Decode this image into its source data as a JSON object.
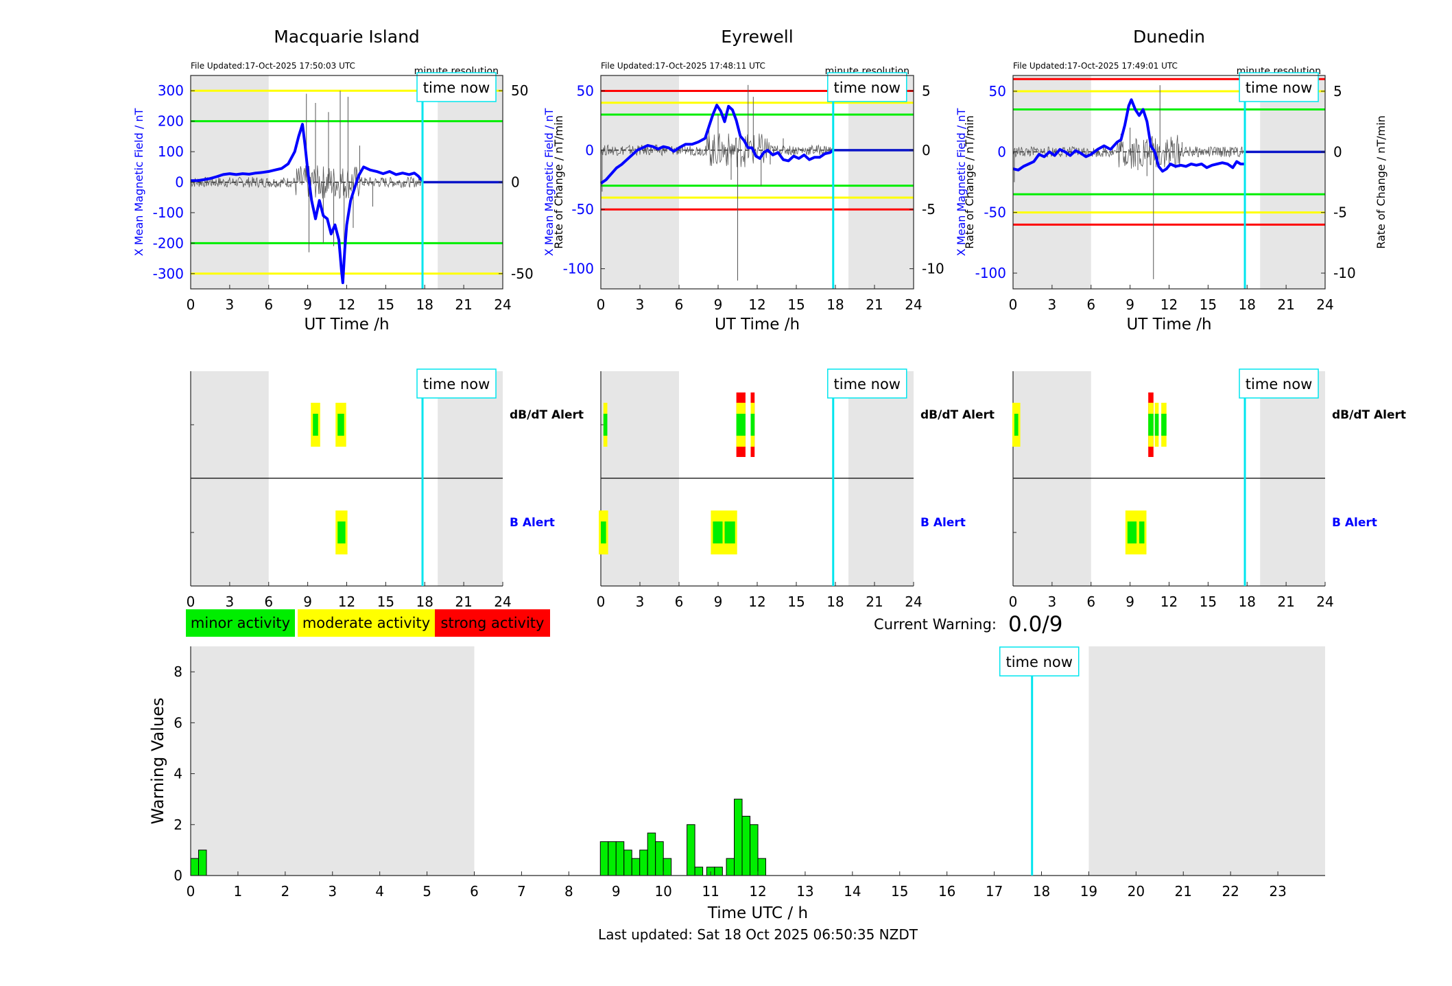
{
  "colors": {
    "shade": "#e6e6e6",
    "blue": "#0000ff",
    "mean_blue": "#0a14c8",
    "cyan": "#00e5ee",
    "green": "#00ee00",
    "yellow": "#ffff00",
    "red": "#ff0000",
    "roc": "#555555"
  },
  "time_now_label": "time now",
  "minute_resolution_label": "minute resolution",
  "stations": [
    {
      "title": "Macquarie Island",
      "file_updated": "File Updated:17-Oct-2025 17:50:03 UTC",
      "ylabel_left": "X Mean Magnetic Field / nT",
      "ylabel_right": "Rate of Change / nT/min",
      "xlabel": "UT Time /h",
      "ylim": [
        -350,
        350
      ],
      "yticks": [
        -300,
        -200,
        -100,
        0,
        100,
        200,
        300
      ],
      "yticks_right": [
        {
          "label": "50",
          "value": 300
        },
        {
          "label": "0",
          "value": 0
        },
        {
          "label": "-50",
          "value": -300
        }
      ],
      "thresholds": [
        {
          "value": 300,
          "color": "yellow"
        },
        {
          "value": 200,
          "color": "green"
        },
        {
          "value": -200,
          "color": "green"
        },
        {
          "value": -300,
          "color": "yellow"
        }
      ],
      "shaded_hours": [
        [
          0,
          6
        ],
        [
          19,
          24
        ]
      ],
      "time_now": 17.83,
      "mean_field": [
        [
          0,
          5
        ],
        [
          0.5,
          5
        ],
        [
          1,
          8
        ],
        [
          1.5,
          12
        ],
        [
          2,
          18
        ],
        [
          2.5,
          25
        ],
        [
          3,
          28
        ],
        [
          3.5,
          25
        ],
        [
          4,
          28
        ],
        [
          4.5,
          26
        ],
        [
          5,
          30
        ],
        [
          5.5,
          32
        ],
        [
          6,
          35
        ],
        [
          6.5,
          40
        ],
        [
          7,
          45
        ],
        [
          7.5,
          60
        ],
        [
          8,
          100
        ],
        [
          8.3,
          150
        ],
        [
          8.6,
          190
        ],
        [
          8.8,
          120
        ],
        [
          9,
          40
        ],
        [
          9.3,
          -60
        ],
        [
          9.6,
          -120
        ],
        [
          9.9,
          -60
        ],
        [
          10.2,
          -110
        ],
        [
          10.5,
          -120
        ],
        [
          10.8,
          -170
        ],
        [
          11.1,
          -140
        ],
        [
          11.4,
          -190
        ],
        [
          11.6,
          -290
        ],
        [
          11.7,
          -330
        ],
        [
          11.85,
          -220
        ],
        [
          12,
          -140
        ],
        [
          12.3,
          -60
        ],
        [
          12.6,
          -20
        ],
        [
          12.9,
          20
        ],
        [
          13.3,
          50
        ],
        [
          13.8,
          40
        ],
        [
          14.3,
          35
        ],
        [
          14.8,
          28
        ],
        [
          15.3,
          35
        ],
        [
          15.8,
          25
        ],
        [
          16.3,
          30
        ],
        [
          16.8,
          25
        ],
        [
          17.2,
          30
        ],
        [
          17.5,
          20
        ],
        [
          17.8,
          5
        ]
      ],
      "roc_spikes": [
        [
          8.9,
          290
        ],
        [
          9.1,
          -230
        ],
        [
          9.6,
          260
        ],
        [
          10.2,
          -200
        ],
        [
          10.6,
          230
        ],
        [
          11.0,
          -210
        ],
        [
          11.5,
          300
        ],
        [
          11.8,
          -230
        ],
        [
          12.1,
          280
        ],
        [
          12.5,
          -150
        ],
        [
          13.0,
          120
        ],
        [
          14.0,
          -80
        ]
      ],
      "alerts": {
        "dbdt": [
          {
            "start": 9.4,
            "end": 9.8,
            "level": "minor"
          },
          {
            "start": 11.3,
            "end": 11.8,
            "level": "minor"
          }
        ],
        "b": [
          {
            "start": 11.3,
            "end": 11.9,
            "level": "minor"
          }
        ]
      }
    },
    {
      "title": "Eyrewell",
      "file_updated": "File Updated:17-Oct-2025 17:48:11 UTC",
      "ylabel_left": "X Mean Magnetic Field / nT",
      "ylabel_right": "Rate of Change / nT/min",
      "xlabel": "UT Time /h",
      "ylim": [
        -117,
        63
      ],
      "yticks": [
        -100,
        -50,
        0,
        50
      ],
      "yticks_right": [
        {
          "label": "5",
          "value": 50
        },
        {
          "label": "0",
          "value": 0
        },
        {
          "label": "-5",
          "value": -50
        },
        {
          "label": "-10",
          "value": -100
        }
      ],
      "thresholds": [
        {
          "value": 50,
          "color": "red"
        },
        {
          "value": 40,
          "color": "yellow"
        },
        {
          "value": 30,
          "color": "green"
        },
        {
          "value": -30,
          "color": "green"
        },
        {
          "value": -40,
          "color": "yellow"
        },
        {
          "value": -50,
          "color": "red"
        }
      ],
      "shaded_hours": [
        [
          0,
          6
        ],
        [
          19,
          24
        ]
      ],
      "time_now": 17.83,
      "mean_field": [
        [
          0,
          -28
        ],
        [
          0.4,
          -25
        ],
        [
          0.8,
          -20
        ],
        [
          1.2,
          -15
        ],
        [
          1.6,
          -12
        ],
        [
          2,
          -8
        ],
        [
          2.4,
          -4
        ],
        [
          2.8,
          0
        ],
        [
          3.2,
          2
        ],
        [
          3.6,
          4
        ],
        [
          4,
          3
        ],
        [
          4.4,
          1
        ],
        [
          4.8,
          3
        ],
        [
          5.2,
          2
        ],
        [
          5.6,
          -1
        ],
        [
          6,
          2
        ],
        [
          6.5,
          5
        ],
        [
          7,
          5
        ],
        [
          7.5,
          7
        ],
        [
          8,
          10
        ],
        [
          8.3,
          20
        ],
        [
          8.6,
          30
        ],
        [
          8.9,
          38
        ],
        [
          9.2,
          33
        ],
        [
          9.5,
          24
        ],
        [
          9.8,
          37
        ],
        [
          10.1,
          34
        ],
        [
          10.4,
          25
        ],
        [
          10.7,
          12
        ],
        [
          11,
          8
        ],
        [
          11.3,
          2
        ],
        [
          11.6,
          2
        ],
        [
          11.9,
          -5
        ],
        [
          12.2,
          -7
        ],
        [
          12.5,
          -2
        ],
        [
          12.8,
          0
        ],
        [
          13.2,
          -4
        ],
        [
          13.6,
          -2
        ],
        [
          14,
          -8
        ],
        [
          14.4,
          -9
        ],
        [
          14.8,
          -5
        ],
        [
          15.2,
          -7
        ],
        [
          15.6,
          -4
        ],
        [
          16,
          -8
        ],
        [
          16.4,
          -6
        ],
        [
          16.8,
          -6
        ],
        [
          17.2,
          -3
        ],
        [
          17.6,
          -2
        ],
        [
          17.8,
          0
        ]
      ],
      "roc_spikes": [
        [
          0.1,
          -35
        ],
        [
          9.0,
          30
        ],
        [
          10.0,
          -25
        ],
        [
          10.5,
          -110
        ],
        [
          11.3,
          55
        ],
        [
          11.7,
          45
        ],
        [
          12.3,
          -30
        ],
        [
          8.3,
          20
        ],
        [
          13.0,
          -12
        ],
        [
          14.0,
          10
        ]
      ],
      "alerts": {
        "dbdt": [
          {
            "start": 0.2,
            "end": 0.5,
            "level": "moderate"
          },
          {
            "start": 10.4,
            "end": 11.1,
            "level": "strong"
          },
          {
            "start": 11.5,
            "end": 11.8,
            "level": "strong"
          }
        ],
        "b": [
          {
            "start": 0,
            "end": 0.4,
            "level": "minor"
          },
          {
            "start": 8.6,
            "end": 9.4,
            "level": "minor"
          },
          {
            "start": 9.5,
            "end": 10.3,
            "level": "minor"
          }
        ]
      }
    },
    {
      "title": "Dunedin",
      "file_updated": "File Updated:17-Oct-2025 17:49:01 UTC",
      "ylabel_left": "X Mean Magnetic Field / nT",
      "ylabel_right": "Rate of Change / nT/min",
      "xlabel": "UT Time /h",
      "ylim": [
        -113,
        63
      ],
      "yticks": [
        -100,
        -50,
        0,
        50
      ],
      "yticks_right": [
        {
          "label": "5",
          "value": 50
        },
        {
          "label": "0",
          "value": 0
        },
        {
          "label": "-5",
          "value": -50
        },
        {
          "label": "-10",
          "value": -100
        }
      ],
      "thresholds": [
        {
          "value": 60,
          "color": "red"
        },
        {
          "value": 50,
          "color": "yellow"
        },
        {
          "value": 35,
          "color": "green"
        },
        {
          "value": -35,
          "color": "green"
        },
        {
          "value": -50,
          "color": "yellow"
        },
        {
          "value": -60,
          "color": "red"
        }
      ],
      "shaded_hours": [
        [
          0,
          6
        ],
        [
          19,
          24
        ]
      ],
      "time_now": 17.83,
      "mean_field": [
        [
          0,
          -14
        ],
        [
          0.4,
          -15
        ],
        [
          0.8,
          -12
        ],
        [
          1.2,
          -10
        ],
        [
          1.6,
          -8
        ],
        [
          2,
          -2
        ],
        [
          2.4,
          -4
        ],
        [
          2.8,
          0
        ],
        [
          3.2,
          -3
        ],
        [
          3.6,
          2
        ],
        [
          4,
          0
        ],
        [
          4.4,
          -3
        ],
        [
          4.8,
          1
        ],
        [
          5.2,
          -1
        ],
        [
          5.6,
          -4
        ],
        [
          6,
          -2
        ],
        [
          6.5,
          2
        ],
        [
          7,
          5
        ],
        [
          7.5,
          2
        ],
        [
          8,
          8
        ],
        [
          8.3,
          10
        ],
        [
          8.6,
          22
        ],
        [
          8.9,
          38
        ],
        [
          9.1,
          43
        ],
        [
          9.4,
          35
        ],
        [
          9.7,
          30
        ],
        [
          10,
          35
        ],
        [
          10.3,
          25
        ],
        [
          10.6,
          5
        ],
        [
          10.9,
          0
        ],
        [
          11.2,
          -12
        ],
        [
          11.5,
          -16
        ],
        [
          11.8,
          -14
        ],
        [
          12.1,
          -10
        ],
        [
          12.5,
          -12
        ],
        [
          12.9,
          -11
        ],
        [
          13.3,
          -12
        ],
        [
          13.7,
          -10
        ],
        [
          14.1,
          -11
        ],
        [
          14.5,
          -10
        ],
        [
          14.9,
          -13
        ],
        [
          15.3,
          -11
        ],
        [
          15.7,
          -10
        ],
        [
          16.1,
          -9
        ],
        [
          16.5,
          -10
        ],
        [
          16.9,
          -13
        ],
        [
          17.2,
          -8
        ],
        [
          17.5,
          -10
        ],
        [
          17.8,
          -10
        ]
      ],
      "roc_spikes": [
        [
          0.1,
          -25
        ],
        [
          9.0,
          20
        ],
        [
          9.6,
          -15
        ],
        [
          10.3,
          -20
        ],
        [
          10.8,
          -105
        ],
        [
          11.3,
          55
        ],
        [
          8.3,
          15
        ],
        [
          12.0,
          -10
        ],
        [
          13.0,
          8
        ]
      ],
      "alerts": {
        "dbdt": [
          {
            "start": 0.1,
            "end": 0.4,
            "level": "minor"
          },
          {
            "start": 10.4,
            "end": 10.8,
            "level": "strong"
          },
          {
            "start": 10.9,
            "end": 11.2,
            "level": "moderate"
          },
          {
            "start": 11.4,
            "end": 11.8,
            "level": "moderate"
          }
        ],
        "b": [
          {
            "start": 8.8,
            "end": 9.5,
            "level": "minor"
          },
          {
            "start": 9.7,
            "end": 10.1,
            "level": "minor"
          }
        ]
      }
    }
  ],
  "alert_labels": {
    "dbdt": "dB/dT Alert",
    "b": "B Alert"
  },
  "legend": {
    "minor": "minor activity",
    "moderate": "moderate activity",
    "strong": "strong activity"
  },
  "current_warning_label": "Current Warning:",
  "current_warning_value": "0.0/9",
  "warning_chart": {
    "ylabel": "Warning Values",
    "xlabel": "Time UTC / h",
    "ylim": [
      0,
      9
    ],
    "yticks": [
      0,
      2,
      4,
      6,
      8
    ],
    "xticks": [
      0,
      1,
      2,
      3,
      4,
      5,
      6,
      7,
      8,
      9,
      10,
      11,
      12,
      13,
      14,
      15,
      16,
      17,
      18,
      19,
      20,
      21,
      22,
      23
    ],
    "time_now": 17.8,
    "shaded_hours": [
      [
        0,
        6
      ],
      [
        19,
        24
      ]
    ]
  },
  "chart_data": {
    "type": "bar",
    "title": "",
    "xlabel": "Time UTC / h",
    "ylabel": "Warning Values",
    "ylim": [
      0,
      9
    ],
    "bar_width_h": 0.1667,
    "x": [
      0.083,
      0.25,
      8.75,
      8.917,
      9.083,
      9.25,
      9.417,
      9.583,
      9.75,
      9.917,
      10.083,
      10.583,
      10.75,
      11.0,
      11.167,
      11.417,
      11.583,
      11.75,
      11.917,
      12.083
    ],
    "values": [
      0.67,
      1.0,
      1.33,
      1.33,
      1.33,
      1.0,
      0.67,
      1.0,
      1.67,
      1.33,
      0.67,
      2.0,
      0.33,
      0.33,
      0.33,
      0.67,
      3.0,
      2.33,
      2.0,
      0.67
    ]
  },
  "footer": "Last updated: Sat 18 Oct 2025 06:50:35 NZDT"
}
